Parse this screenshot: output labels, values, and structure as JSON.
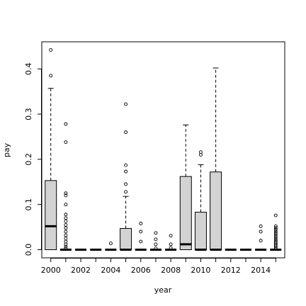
{
  "chart_data": {
    "type": "boxplot",
    "xlabel": "year",
    "ylabel": "pay",
    "ylim": [
      -0.018,
      0.46
    ],
    "xlim": [
      1999.4,
      2015.6
    ],
    "grid": false,
    "x_ticks": [
      2000,
      2002,
      2004,
      2006,
      2008,
      2010,
      2012,
      2014
    ],
    "y_ticks": [
      0.0,
      0.1,
      0.2,
      0.3,
      0.4
    ],
    "y_tick_labels": [
      "0.0",
      "0.1",
      "0.2",
      "0.3",
      "0.4"
    ],
    "box_fill": "#d3d3d3",
    "categories": [
      2000,
      2001,
      2002,
      2003,
      2004,
      2005,
      2006,
      2007,
      2008,
      2009,
      2010,
      2011,
      2012,
      2013,
      2014,
      2015
    ],
    "boxes": [
      {
        "x": 2000,
        "q1": 0.0,
        "median": 0.052,
        "q3": 0.153,
        "whisker_low": 0.0,
        "whisker_high": 0.357,
        "outliers": [
          0.385,
          0.442
        ]
      },
      {
        "x": 2001,
        "q1": 0.0,
        "median": 0.0,
        "q3": 0.0,
        "whisker_low": 0.0,
        "whisker_high": 0.0,
        "outliers": [
          0.003,
          0.007,
          0.012,
          0.018,
          0.025,
          0.032,
          0.04,
          0.048,
          0.055,
          0.063,
          0.07,
          0.078,
          0.1,
          0.12,
          0.125,
          0.238,
          0.278
        ]
      },
      {
        "x": 2002,
        "q1": 0.0,
        "median": 0.0,
        "q3": 0.0,
        "whisker_low": 0.0,
        "whisker_high": 0.0,
        "outliers": []
      },
      {
        "x": 2003,
        "q1": 0.0,
        "median": 0.0,
        "q3": 0.0,
        "whisker_low": 0.0,
        "whisker_high": 0.0,
        "outliers": []
      },
      {
        "x": 2004,
        "q1": 0.0,
        "median": 0.0,
        "q3": 0.0,
        "whisker_low": 0.0,
        "whisker_high": 0.0,
        "outliers": [
          0.014
        ]
      },
      {
        "x": 2005,
        "q1": 0.0,
        "median": 0.0,
        "q3": 0.047,
        "whisker_low": 0.0,
        "whisker_high": 0.118,
        "outliers": [
          0.128,
          0.145,
          0.173,
          0.187,
          0.26,
          0.322
        ]
      },
      {
        "x": 2006,
        "q1": 0.0,
        "median": 0.0,
        "q3": 0.0,
        "whisker_low": 0.0,
        "whisker_high": 0.0,
        "outliers": [
          0.018,
          0.04,
          0.058
        ]
      },
      {
        "x": 2007,
        "q1": 0.0,
        "median": 0.0,
        "q3": 0.0,
        "whisker_low": 0.0,
        "whisker_high": 0.0,
        "outliers": [
          0.003,
          0.012,
          0.023,
          0.037
        ]
      },
      {
        "x": 2008,
        "q1": 0.0,
        "median": 0.0,
        "q3": 0.0,
        "whisker_low": 0.0,
        "whisker_high": 0.0,
        "outliers": [
          0.004,
          0.012,
          0.031
        ]
      },
      {
        "x": 2009,
        "q1": 0.0,
        "median": 0.012,
        "q3": 0.162,
        "whisker_low": 0.0,
        "whisker_high": 0.276,
        "outliers": []
      },
      {
        "x": 2010,
        "q1": 0.0,
        "median": 0.0,
        "q3": 0.083,
        "whisker_low": 0.0,
        "whisker_high": 0.188,
        "outliers": [
          0.21,
          0.216
        ]
      },
      {
        "x": 2011,
        "q1": 0.0,
        "median": 0.0,
        "q3": 0.172,
        "whisker_low": 0.0,
        "whisker_high": 0.402,
        "outliers": []
      },
      {
        "x": 2012,
        "q1": 0.0,
        "median": 0.0,
        "q3": 0.0,
        "whisker_low": 0.0,
        "whisker_high": 0.0,
        "outliers": []
      },
      {
        "x": 2013,
        "q1": 0.0,
        "median": 0.0,
        "q3": 0.0,
        "whisker_low": 0.0,
        "whisker_high": 0.0,
        "outliers": []
      },
      {
        "x": 2014,
        "q1": 0.0,
        "median": 0.0,
        "q3": 0.0,
        "whisker_low": 0.0,
        "whisker_high": 0.0,
        "outliers": [
          0.02,
          0.04,
          0.052
        ]
      },
      {
        "x": 2015,
        "q1": 0.0,
        "median": 0.0,
        "q3": 0.0,
        "whisker_low": 0.0,
        "whisker_high": 0.0,
        "outliers": [
          0.002,
          0.005,
          0.008,
          0.011,
          0.014,
          0.017,
          0.02,
          0.024,
          0.028,
          0.032,
          0.036,
          0.04,
          0.044,
          0.048,
          0.052,
          0.076
        ]
      }
    ]
  }
}
